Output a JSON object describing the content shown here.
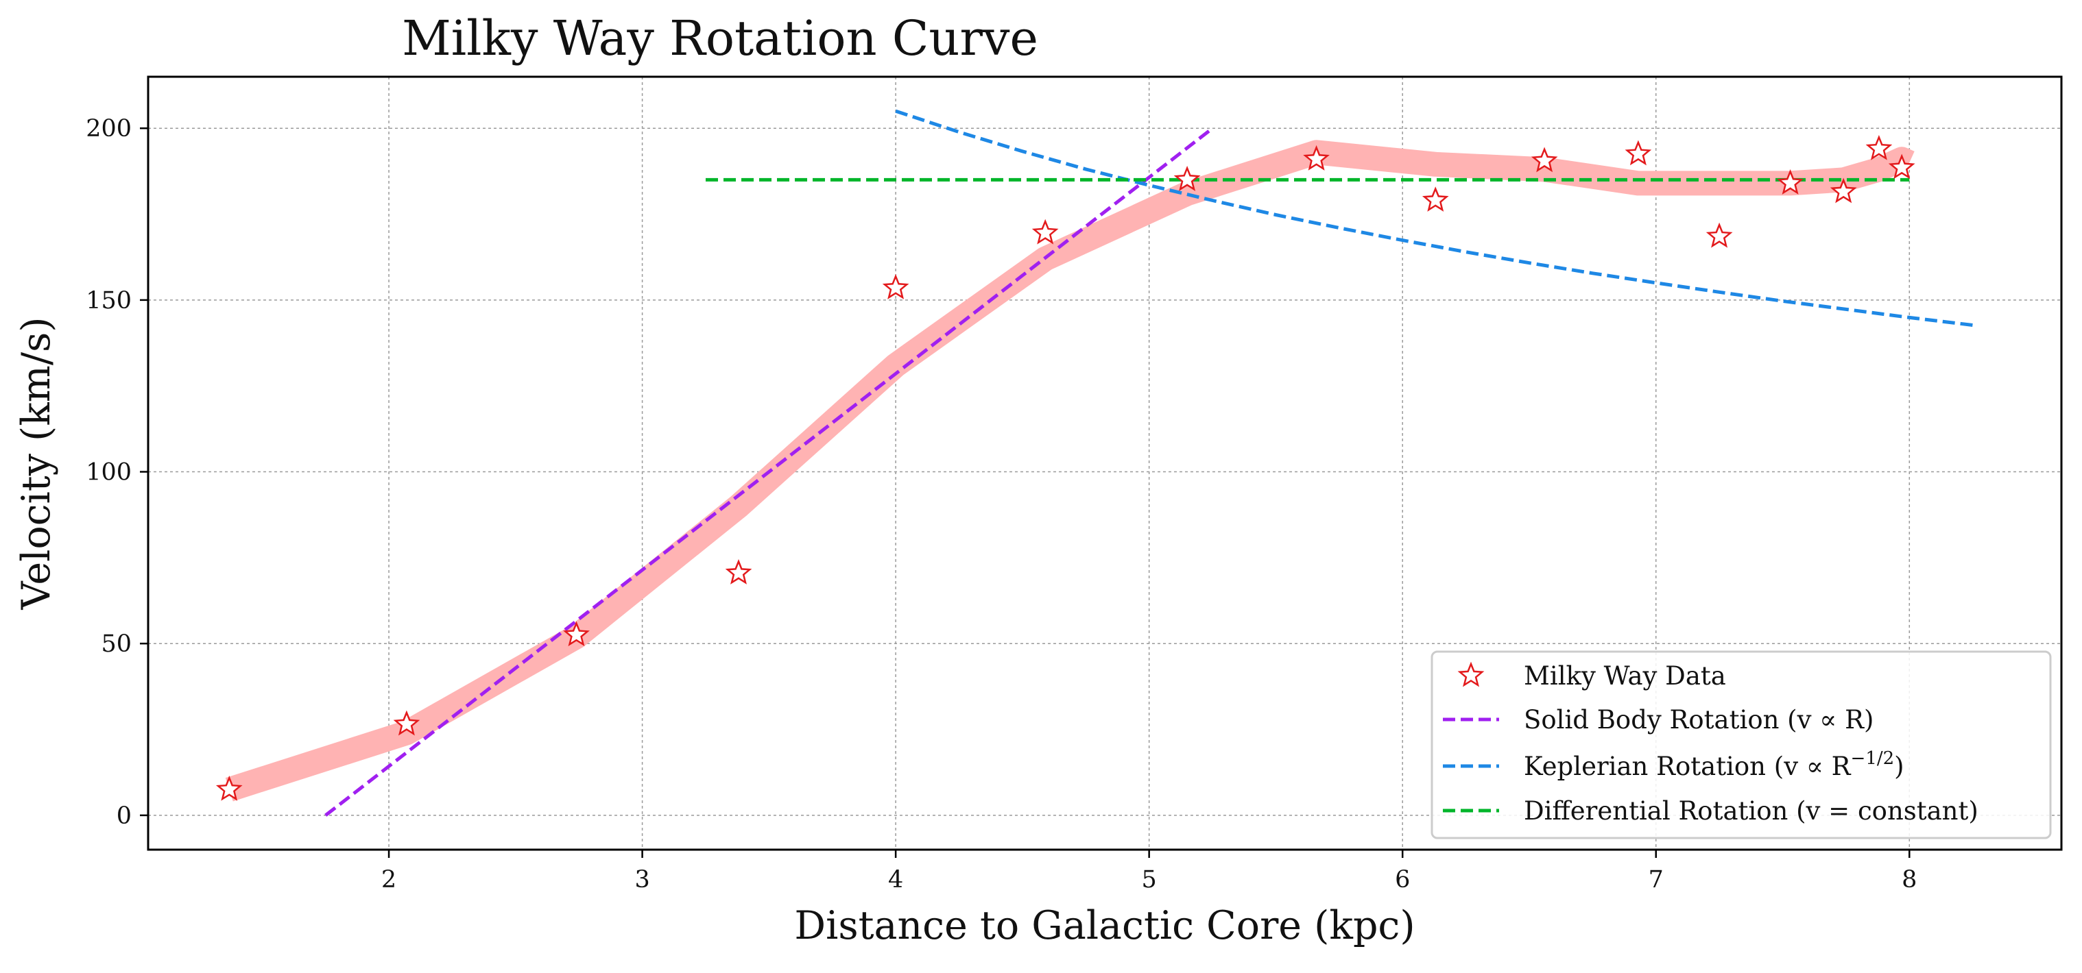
{
  "chart_data": {
    "type": "line",
    "title": "Milky Way Rotation Curve",
    "xlabel": "Distance to Galactic Core (kpc)",
    "ylabel": "Velocity (km/s)",
    "xlim": [
      1.05,
      8.6
    ],
    "ylim": [
      -10,
      215
    ],
    "x_ticks": [
      2,
      3,
      4,
      5,
      6,
      7,
      8
    ],
    "y_ticks": [
      0,
      50,
      100,
      150,
      200
    ],
    "grid": true,
    "legend_position": "lower right",
    "series": [
      {
        "name": "Milky Way Data",
        "kind": "scatter",
        "marker": "star",
        "color": "#e31a1c",
        "x": [
          1.37,
          2.07,
          2.74,
          3.38,
          4.0,
          4.59,
          5.15,
          5.66,
          6.13,
          6.56,
          6.93,
          7.25,
          7.53,
          7.74,
          7.88,
          7.97
        ],
        "y": [
          7.5,
          26.5,
          52.5,
          70.5,
          153.5,
          169.5,
          185,
          191,
          179,
          190.5,
          192.5,
          168.5,
          184,
          181.5,
          194,
          188.5
        ]
      },
      {
        "name": "",
        "kind": "smoothed-band",
        "color": "#ffb3b3",
        "x": [
          1.37,
          2.07,
          2.74,
          3.38,
          4.0,
          4.59,
          5.15,
          5.66,
          6.13,
          6.56,
          6.93,
          7.25,
          7.53,
          7.74,
          7.88,
          7.97,
          8.0
        ],
        "y": [
          7.5,
          24,
          52,
          90,
          131,
          162,
          181,
          193,
          189.5,
          188,
          184,
          184,
          184,
          185,
          188,
          191,
          190
        ]
      },
      {
        "name": "Solid Body Rotation (v ∝ R)",
        "kind": "dashed-line",
        "color": "#a020f0",
        "x": [
          1.75,
          5.25
        ],
        "y": [
          0,
          200
        ]
      },
      {
        "name": "Keplerian Rotation (v ∝ R",
        "name_superscript": "−1/2",
        "name_suffix": ")",
        "kind": "dashed-line",
        "color": "#1e88e5",
        "x": [
          4.0,
          4.25,
          4.5,
          4.75,
          5.0,
          5.25,
          5.5,
          5.75,
          6.0,
          6.25,
          6.5,
          6.75,
          7.0,
          7.25,
          7.5,
          7.75,
          8.0,
          8.25
        ],
        "y": [
          205,
          198.9,
          193.3,
          188.1,
          183.4,
          179.0,
          174.8,
          171.0,
          167.4,
          164.0,
          160.8,
          157.8,
          155.0,
          152.3,
          149.7,
          147.3,
          144.9,
          142.7
        ]
      },
      {
        "name": "Differential Rotation (v = constant)",
        "kind": "dashed-line",
        "color": "#00b52a",
        "x": [
          3.25,
          8.0
        ],
        "y": [
          185,
          185
        ]
      }
    ]
  }
}
